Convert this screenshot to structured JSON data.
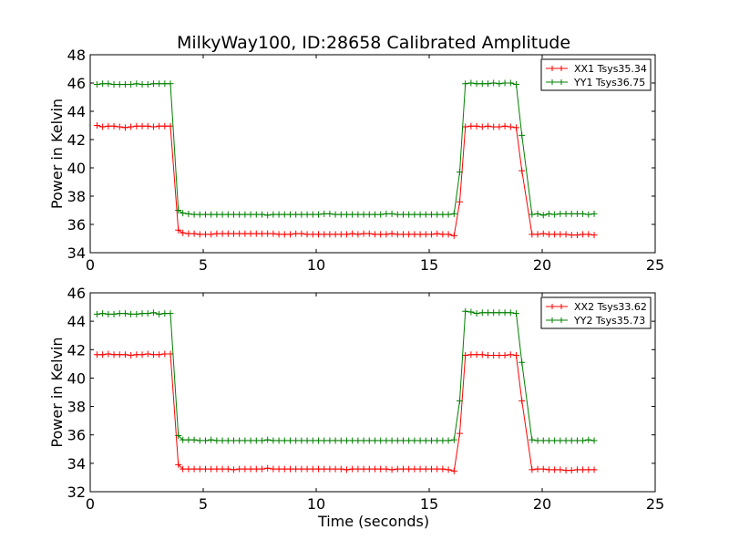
{
  "figure": {
    "title": "MilkyWay100, ID:28658 Calibrated Amplitude",
    "xlabel": "Time (seconds)"
  },
  "colors": {
    "XX": "#ff0000",
    "YY": "#008000"
  },
  "chart_data": [
    {
      "type": "line",
      "ylabel": "Power in Kelvin",
      "xlim": [
        0,
        25
      ],
      "ylim": [
        34,
        48
      ],
      "xticks": [
        0,
        5,
        10,
        15,
        20,
        25
      ],
      "yticks": [
        34,
        36,
        38,
        40,
        42,
        44,
        46,
        48
      ],
      "grid": false,
      "legend_position": "top-right",
      "x": [
        0.3,
        0.55,
        0.8,
        1.05,
        1.3,
        1.55,
        1.8,
        2.05,
        2.3,
        2.55,
        2.8,
        3.05,
        3.3,
        3.55,
        3.9,
        4.1,
        4.35,
        4.6,
        4.85,
        5.1,
        5.35,
        5.6,
        5.85,
        6.1,
        6.35,
        6.6,
        6.85,
        7.1,
        7.35,
        7.6,
        7.85,
        8.1,
        8.35,
        8.6,
        8.85,
        9.1,
        9.35,
        9.6,
        9.85,
        10.1,
        10.35,
        10.6,
        10.85,
        11.1,
        11.35,
        11.6,
        11.85,
        12.1,
        12.35,
        12.6,
        12.85,
        13.1,
        13.35,
        13.6,
        13.85,
        14.1,
        14.35,
        14.6,
        14.85,
        15.1,
        15.35,
        15.6,
        15.85,
        16.1,
        16.35,
        16.6,
        16.85,
        17.1,
        17.35,
        17.6,
        17.85,
        18.1,
        18.35,
        18.6,
        18.85,
        19.1,
        19.55,
        19.8,
        20.05,
        20.3,
        20.55,
        20.8,
        21.05,
        21.3,
        21.55,
        21.8,
        22.05,
        22.3
      ],
      "series": [
        {
          "name": "XX1 Tsys35.34",
          "color": "#ff0000",
          "values": [
            43.0,
            42.9,
            42.95,
            42.95,
            42.9,
            42.85,
            42.9,
            42.95,
            42.95,
            42.95,
            42.9,
            42.95,
            42.95,
            42.95,
            35.6,
            35.4,
            35.35,
            35.35,
            35.3,
            35.3,
            35.3,
            35.35,
            35.35,
            35.35,
            35.35,
            35.35,
            35.35,
            35.35,
            35.35,
            35.35,
            35.35,
            35.35,
            35.3,
            35.3,
            35.3,
            35.35,
            35.35,
            35.3,
            35.3,
            35.3,
            35.3,
            35.3,
            35.3,
            35.3,
            35.3,
            35.35,
            35.3,
            35.35,
            35.35,
            35.3,
            35.3,
            35.3,
            35.35,
            35.3,
            35.3,
            35.3,
            35.3,
            35.3,
            35.3,
            35.3,
            35.35,
            35.3,
            35.3,
            35.2,
            37.6,
            42.9,
            42.95,
            42.95,
            42.9,
            42.95,
            42.9,
            42.9,
            42.95,
            42.9,
            42.85,
            39.8,
            35.3,
            35.3,
            35.35,
            35.3,
            35.3,
            35.3,
            35.3,
            35.25,
            35.25,
            35.3,
            35.3,
            35.25
          ]
        },
        {
          "name": "YY1 Tsys36.75",
          "color": "#008000",
          "values": [
            45.9,
            45.95,
            45.95,
            45.9,
            45.9,
            45.9,
            45.9,
            45.95,
            45.9,
            45.9,
            45.95,
            45.95,
            45.95,
            45.95,
            37.0,
            36.8,
            36.75,
            36.7,
            36.7,
            36.7,
            36.7,
            36.7,
            36.7,
            36.7,
            36.7,
            36.7,
            36.7,
            36.7,
            36.7,
            36.7,
            36.65,
            36.7,
            36.7,
            36.7,
            36.7,
            36.7,
            36.7,
            36.7,
            36.7,
            36.7,
            36.75,
            36.75,
            36.7,
            36.7,
            36.7,
            36.7,
            36.7,
            36.7,
            36.7,
            36.7,
            36.7,
            36.75,
            36.75,
            36.7,
            36.7,
            36.7,
            36.7,
            36.7,
            36.7,
            36.7,
            36.7,
            36.7,
            36.7,
            36.75,
            39.7,
            45.95,
            46.0,
            45.95,
            45.95,
            45.95,
            46.0,
            45.95,
            46.0,
            46.0,
            45.9,
            42.3,
            36.7,
            36.75,
            36.65,
            36.75,
            36.7,
            36.75,
            36.75,
            36.75,
            36.75,
            36.75,
            36.7,
            36.75
          ]
        }
      ]
    },
    {
      "type": "line",
      "ylabel": "Power in Kelvin",
      "xlabel": "Time (seconds)",
      "xlim": [
        0,
        25
      ],
      "ylim": [
        32,
        46
      ],
      "xticks": [
        0,
        5,
        10,
        15,
        20,
        25
      ],
      "yticks": [
        32,
        34,
        36,
        38,
        40,
        42,
        44,
        46
      ],
      "grid": false,
      "legend_position": "top-right",
      "x": [
        0.3,
        0.55,
        0.8,
        1.05,
        1.3,
        1.55,
        1.8,
        2.05,
        2.3,
        2.55,
        2.8,
        3.05,
        3.3,
        3.55,
        3.9,
        4.1,
        4.35,
        4.6,
        4.85,
        5.1,
        5.35,
        5.6,
        5.85,
        6.1,
        6.35,
        6.6,
        6.85,
        7.1,
        7.35,
        7.6,
        7.85,
        8.1,
        8.35,
        8.6,
        8.85,
        9.1,
        9.35,
        9.6,
        9.85,
        10.1,
        10.35,
        10.6,
        10.85,
        11.1,
        11.35,
        11.6,
        11.85,
        12.1,
        12.35,
        12.6,
        12.85,
        13.1,
        13.35,
        13.6,
        13.85,
        14.1,
        14.35,
        14.6,
        14.85,
        15.1,
        15.35,
        15.6,
        15.85,
        16.1,
        16.35,
        16.6,
        16.85,
        17.1,
        17.35,
        17.6,
        17.85,
        18.1,
        18.35,
        18.6,
        18.85,
        19.1,
        19.55,
        19.8,
        20.05,
        20.3,
        20.55,
        20.8,
        21.05,
        21.3,
        21.55,
        21.8,
        22.05,
        22.3
      ],
      "series": [
        {
          "name": "XX2 Tsys33.62",
          "color": "#ff0000",
          "values": [
            41.65,
            41.65,
            41.7,
            41.65,
            41.65,
            41.65,
            41.6,
            41.65,
            41.65,
            41.7,
            41.65,
            41.65,
            41.7,
            41.7,
            33.9,
            33.6,
            33.6,
            33.6,
            33.6,
            33.6,
            33.6,
            33.6,
            33.6,
            33.6,
            33.55,
            33.6,
            33.6,
            33.6,
            33.6,
            33.6,
            33.65,
            33.6,
            33.6,
            33.6,
            33.6,
            33.6,
            33.6,
            33.6,
            33.6,
            33.6,
            33.6,
            33.6,
            33.6,
            33.6,
            33.55,
            33.6,
            33.6,
            33.6,
            33.6,
            33.6,
            33.6,
            33.6,
            33.55,
            33.6,
            33.6,
            33.6,
            33.6,
            33.6,
            33.6,
            33.6,
            33.6,
            33.6,
            33.55,
            33.45,
            36.1,
            41.6,
            41.65,
            41.65,
            41.65,
            41.6,
            41.6,
            41.6,
            41.6,
            41.65,
            41.6,
            38.4,
            33.55,
            33.6,
            33.6,
            33.55,
            33.55,
            33.55,
            33.5,
            33.5,
            33.55,
            33.55,
            33.55,
            33.55
          ]
        },
        {
          "name": "YY2 Tsys35.73",
          "color": "#008000",
          "values": [
            44.5,
            44.55,
            44.5,
            44.5,
            44.55,
            44.55,
            44.5,
            44.5,
            44.55,
            44.55,
            44.6,
            44.5,
            44.55,
            44.55,
            35.95,
            35.65,
            35.65,
            35.65,
            35.6,
            35.6,
            35.65,
            35.6,
            35.6,
            35.6,
            35.6,
            35.6,
            35.6,
            35.6,
            35.6,
            35.6,
            35.65,
            35.6,
            35.6,
            35.6,
            35.6,
            35.6,
            35.6,
            35.6,
            35.6,
            35.6,
            35.6,
            35.6,
            35.6,
            35.6,
            35.6,
            35.6,
            35.6,
            35.6,
            35.6,
            35.6,
            35.6,
            35.6,
            35.6,
            35.6,
            35.6,
            35.6,
            35.6,
            35.6,
            35.6,
            35.6,
            35.6,
            35.6,
            35.6,
            35.65,
            38.4,
            44.7,
            44.65,
            44.55,
            44.6,
            44.6,
            44.6,
            44.6,
            44.6,
            44.6,
            44.55,
            41.1,
            35.65,
            35.6,
            35.6,
            35.6,
            35.6,
            35.6,
            35.6,
            35.6,
            35.6,
            35.6,
            35.65,
            35.6
          ]
        }
      ]
    }
  ]
}
